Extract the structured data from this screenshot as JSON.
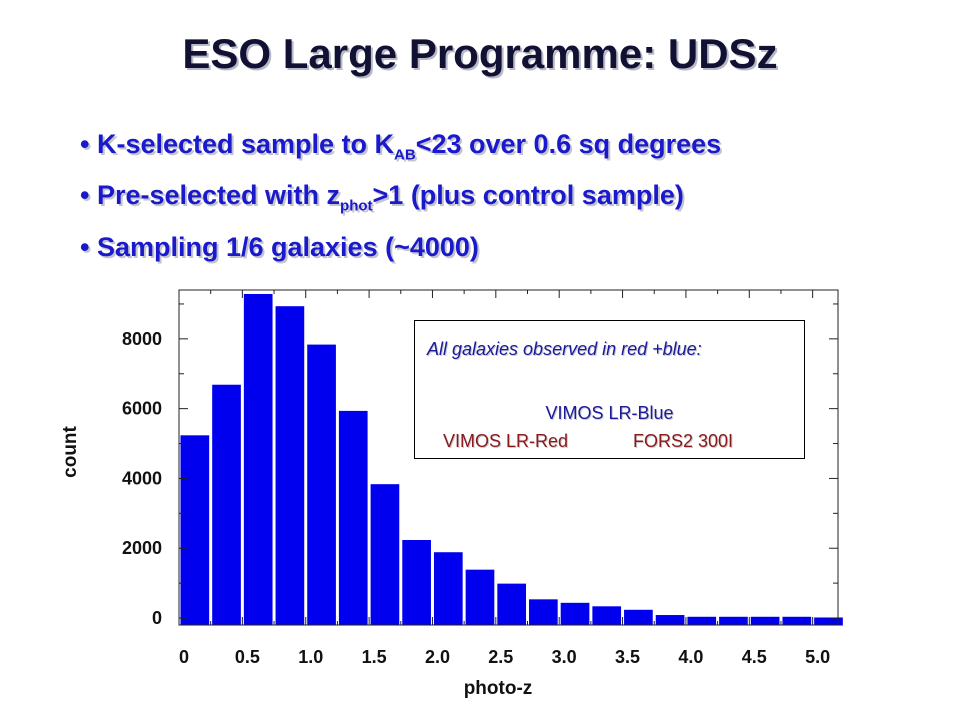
{
  "title": "ESO Large Programme: UDSz",
  "bullets": [
    {
      "pre": "• K-selected sample to K",
      "sub": "AB",
      "post": "<23 over 0.6 sq degrees"
    },
    {
      "pre": "• Pre-selected with z",
      "sub": "phot",
      "post": ">1 (plus control sample)"
    },
    {
      "pre": "• Sampling 1/6 galaxies  (~4000)",
      "sub": "",
      "post": ""
    }
  ],
  "legend": {
    "heading": "All galaxies observed in red +blue:",
    "blue_label": "VIMOS LR-Blue",
    "red_label": "VIMOS LR-Red",
    "fors_label": "FORS2 300I"
  },
  "chart_data": {
    "type": "bar",
    "title": "",
    "xlabel": "photo-z",
    "ylabel": "count",
    "xlim": [
      0,
      5.2
    ],
    "ylim": [
      -200,
      9400
    ],
    "bar_color": "#0000ee",
    "bin_width": 0.25,
    "x_ticks": [
      {
        "value": 0,
        "label": "0"
      },
      {
        "value": 0.5,
        "label": "0.5"
      },
      {
        "value": 1.0,
        "label": "1.0"
      },
      {
        "value": 1.5,
        "label": "1.5"
      },
      {
        "value": 2.0,
        "label": "2.0"
      },
      {
        "value": 2.5,
        "label": "2.5"
      },
      {
        "value": 3.0,
        "label": "3.0"
      },
      {
        "value": 3.5,
        "label": "3.5"
      },
      {
        "value": 4.0,
        "label": "4.0"
      },
      {
        "value": 4.5,
        "label": "4.5"
      },
      {
        "value": 5.0,
        "label": "5.0"
      }
    ],
    "y_ticks": [
      {
        "value": 0,
        "label": "0"
      },
      {
        "value": 2000,
        "label": "2000"
      },
      {
        "value": 4000,
        "label": "4000"
      },
      {
        "value": 6000,
        "label": "6000"
      },
      {
        "value": 8000,
        "label": "8000"
      }
    ],
    "bins_start": [
      0,
      0.25,
      0.5,
      0.75,
      1.0,
      1.25,
      1.5,
      1.75,
      2.0,
      2.25,
      2.5,
      2.75,
      3.0,
      3.25,
      3.5,
      3.75,
      4.0,
      4.25,
      4.5,
      4.75,
      5.0
    ],
    "values": [
      5250,
      6700,
      9300,
      8950,
      7850,
      5950,
      3850,
      2250,
      1900,
      1400,
      1000,
      550,
      450,
      350,
      250,
      100,
      50,
      50,
      50,
      50,
      30
    ],
    "grid": false,
    "legend_position": "top-right"
  }
}
